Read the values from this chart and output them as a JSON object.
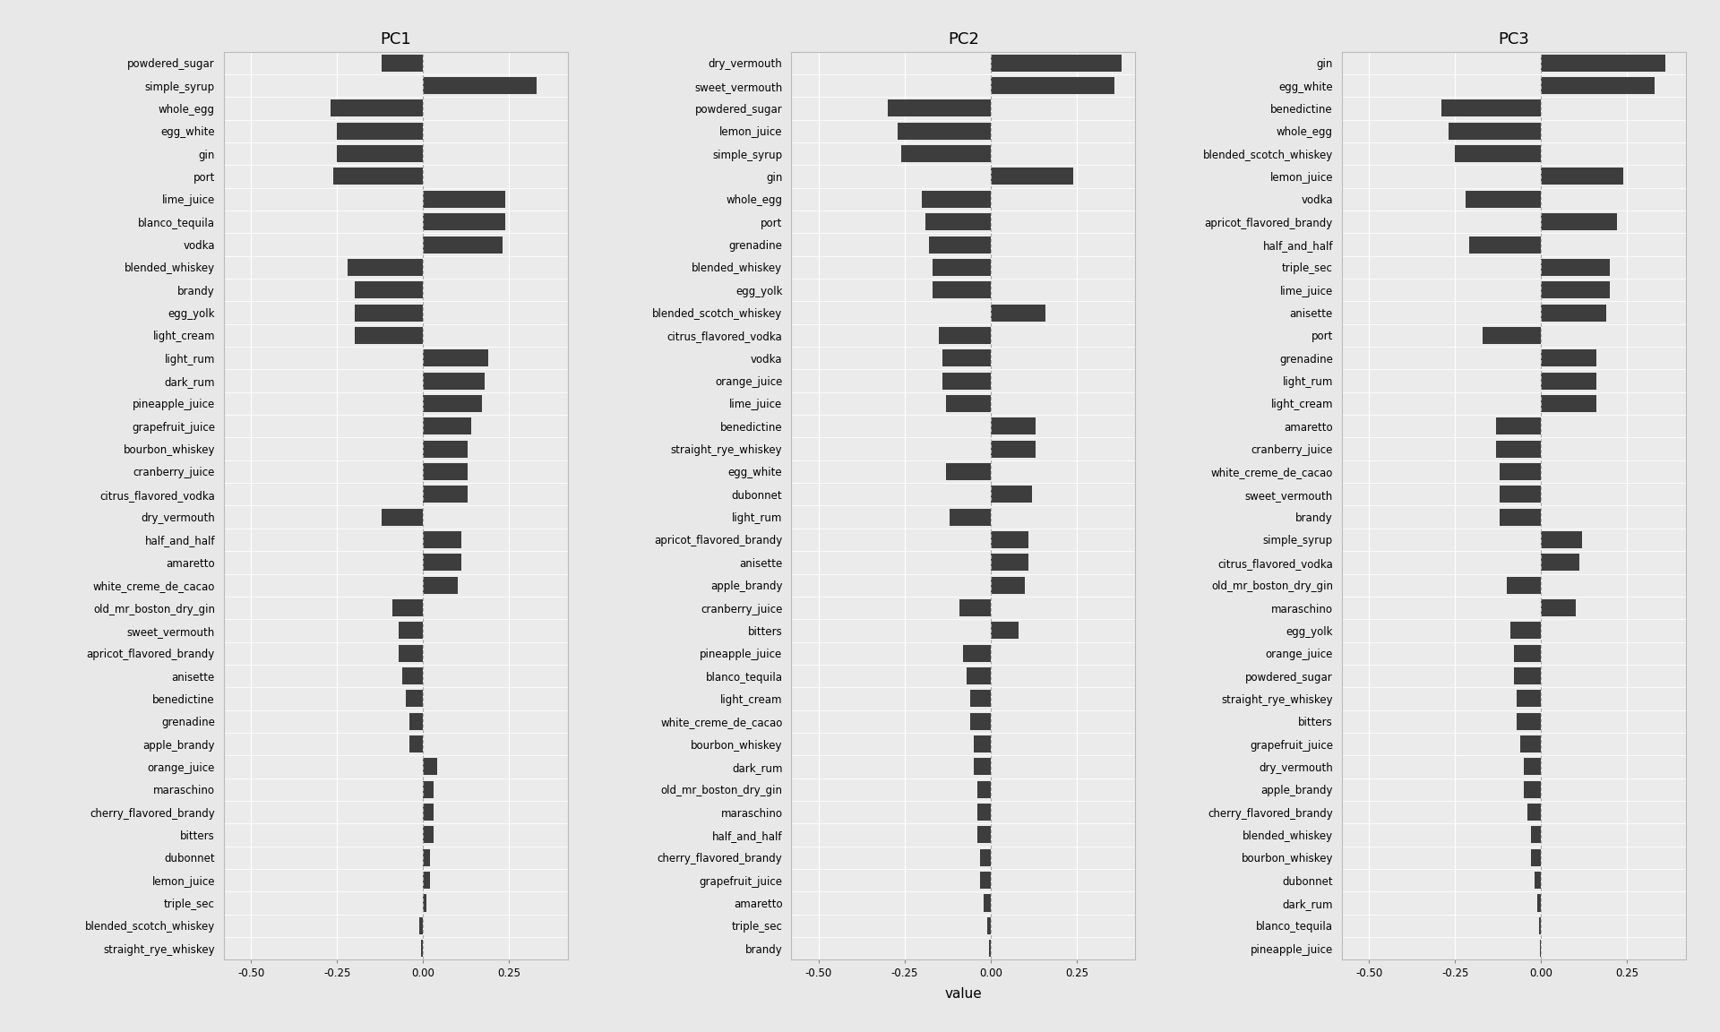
{
  "pc1": {
    "labels": [
      "powdered_sugar",
      "simple_syrup",
      "whole_egg",
      "egg_white",
      "gin",
      "port",
      "lime_juice",
      "blanco_tequila",
      "vodka",
      "blended_whiskey",
      "brandy",
      "egg_yolk",
      "light_cream",
      "light_rum",
      "dark_rum",
      "pineapple_juice",
      "grapefruit_juice",
      "bourbon_whiskey",
      "cranberry_juice",
      "citrus_flavored_vodka",
      "dry_vermouth",
      "half_and_half",
      "amaretto",
      "white_creme_de_cacao",
      "old_mr_boston_dry_gin",
      "sweet_vermouth",
      "apricot_flavored_brandy",
      "anisette",
      "benedictine",
      "grenadine",
      "apple_brandy",
      "orange_juice",
      "maraschino",
      "cherry_flavored_brandy",
      "bitters",
      "dubonnet",
      "lemon_juice",
      "triple_sec",
      "blended_scotch_whiskey",
      "straight_rye_whiskey"
    ],
    "values": [
      -0.12,
      0.33,
      -0.27,
      -0.25,
      -0.25,
      -0.26,
      0.24,
      0.24,
      0.23,
      -0.22,
      -0.2,
      -0.2,
      -0.2,
      0.19,
      0.18,
      0.17,
      0.14,
      0.13,
      0.13,
      0.13,
      -0.12,
      0.11,
      0.11,
      0.1,
      -0.09,
      -0.07,
      -0.07,
      -0.06,
      -0.05,
      -0.04,
      -0.04,
      0.04,
      0.03,
      0.03,
      0.03,
      0.02,
      0.02,
      0.01,
      -0.01,
      -0.005
    ]
  },
  "pc2": {
    "labels": [
      "dry_vermouth",
      "sweet_vermouth",
      "powdered_sugar",
      "lemon_juice",
      "simple_syrup",
      "gin",
      "whole_egg",
      "port",
      "grenadine",
      "blended_whiskey",
      "egg_yolk",
      "blended_scotch_whiskey",
      "citrus_flavored_vodka",
      "vodka",
      "orange_juice",
      "lime_juice",
      "benedictine",
      "straight_rye_whiskey",
      "egg_white",
      "dubonnet",
      "light_rum",
      "apricot_flavored_brandy",
      "anisette",
      "apple_brandy",
      "cranberry_juice",
      "bitters",
      "pineapple_juice",
      "blanco_tequila",
      "light_cream",
      "white_creme_de_cacao",
      "bourbon_whiskey",
      "dark_rum",
      "old_mr_boston_dry_gin",
      "maraschino",
      "half_and_half",
      "cherry_flavored_brandy",
      "grapefruit_juice",
      "amaretto",
      "triple_sec",
      "brandy"
    ],
    "values": [
      0.38,
      0.36,
      -0.3,
      -0.27,
      -0.26,
      0.24,
      -0.2,
      -0.19,
      -0.18,
      -0.17,
      -0.17,
      0.16,
      -0.15,
      -0.14,
      -0.14,
      -0.13,
      0.13,
      0.13,
      -0.13,
      0.12,
      -0.12,
      0.11,
      0.11,
      0.1,
      -0.09,
      0.08,
      -0.08,
      -0.07,
      -0.06,
      -0.06,
      -0.05,
      -0.05,
      -0.04,
      -0.04,
      -0.04,
      -0.03,
      -0.03,
      -0.02,
      -0.01,
      -0.005
    ]
  },
  "pc3": {
    "labels": [
      "gin",
      "egg_white",
      "benedictine",
      "whole_egg",
      "blended_scotch_whiskey",
      "lemon_juice",
      "vodka",
      "apricot_flavored_brandy",
      "half_and_half",
      "triple_sec",
      "lime_juice",
      "anisette",
      "port",
      "grenadine",
      "light_rum",
      "light_cream",
      "amaretto",
      "cranberry_juice",
      "white_creme_de_cacao",
      "sweet_vermouth",
      "brandy",
      "simple_syrup",
      "citrus_flavored_vodka",
      "old_mr_boston_dry_gin",
      "maraschino",
      "egg_yolk",
      "orange_juice",
      "powdered_sugar",
      "straight_rye_whiskey",
      "bitters",
      "grapefruit_juice",
      "dry_vermouth",
      "apple_brandy",
      "cherry_flavored_brandy",
      "blended_whiskey",
      "bourbon_whiskey",
      "dubonnet",
      "dark_rum",
      "blanco_tequila",
      "pineapple_juice"
    ],
    "values": [
      0.36,
      0.33,
      -0.29,
      -0.27,
      -0.25,
      0.24,
      -0.22,
      0.22,
      -0.21,
      0.2,
      0.2,
      0.19,
      -0.17,
      0.16,
      0.16,
      0.16,
      -0.13,
      -0.13,
      -0.12,
      -0.12,
      -0.12,
      0.12,
      0.11,
      -0.1,
      0.1,
      -0.09,
      -0.08,
      -0.08,
      -0.07,
      -0.07,
      -0.06,
      -0.05,
      -0.05,
      -0.04,
      -0.03,
      -0.03,
      -0.02,
      -0.01,
      -0.005,
      -0.003
    ]
  },
  "bar_color": "#3d3d3d",
  "fig_bg": "#e8e8e8",
  "panel_bg": "#ebebeb",
  "title_fontsize": 13,
  "label_fontsize": 8.5,
  "tick_fontsize": 8.5,
  "xlabel": "value",
  "xlabel_fontsize": 11,
  "xlim": [
    -0.58,
    0.42
  ],
  "xticks": [
    -0.5,
    -0.25,
    0.0,
    0.25
  ],
  "xtick_labels": [
    "-0.50",
    "-0.25",
    "0.00",
    "0.25"
  ]
}
